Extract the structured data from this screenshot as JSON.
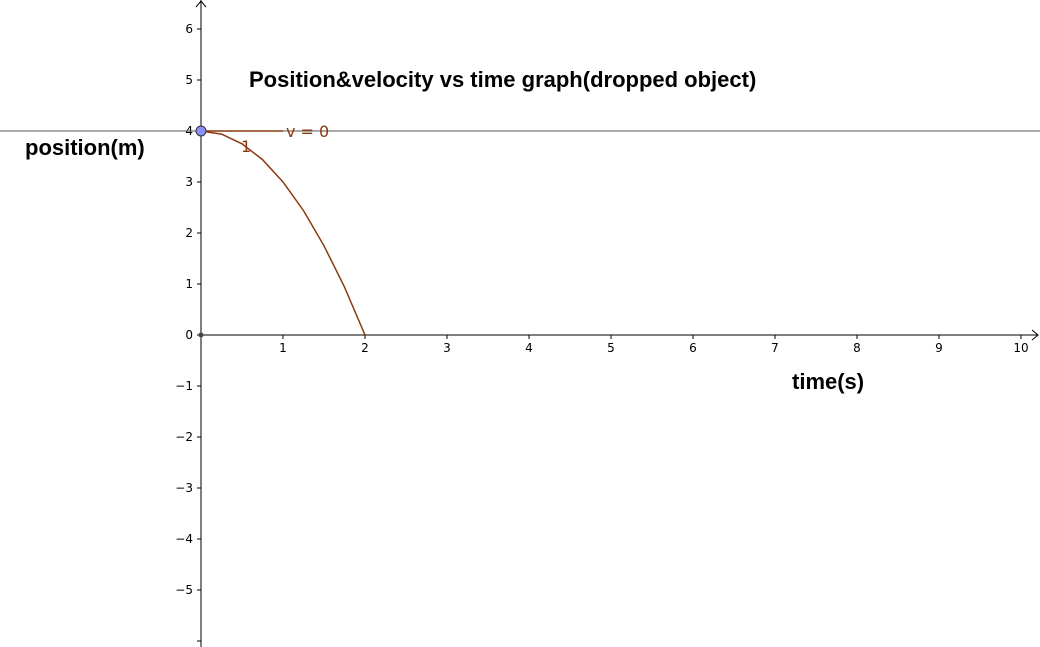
{
  "chart_data": {
    "type": "line",
    "title": "Position&velocity vs time graph(dropped object)",
    "xlabel": "time(s)",
    "ylabel": "position(m)",
    "xlim": [
      0,
      10
    ],
    "ylim": [
      -6,
      6
    ],
    "x_ticks": [
      "1",
      "2",
      "3",
      "4",
      "5",
      "6",
      "7",
      "8",
      "9",
      "10"
    ],
    "y_ticks": [
      "6",
      "5",
      "4",
      "3",
      "2",
      "1",
      "0",
      "−1",
      "−2",
      "−3",
      "−4",
      "−5"
    ],
    "grid": false,
    "curve": {
      "x": [
        0,
        0.25,
        0.5,
        0.75,
        1,
        1.25,
        1.5,
        1.75,
        2
      ],
      "y": [
        4,
        3.94,
        3.75,
        3.44,
        3,
        2.44,
        1.75,
        0.94,
        0
      ]
    },
    "horizontal_line_y": 4,
    "tangent_segment": {
      "x": [
        0,
        1
      ],
      "y": [
        4,
        4
      ]
    },
    "point": {
      "x": 0,
      "y": 4
    },
    "annotations": {
      "velocity": "v = 0",
      "slope": "1"
    },
    "colors": {
      "curve": "#8b3a0f",
      "point": "#8f8fff",
      "axis": "#000000",
      "horizontal_line": "#555555"
    }
  }
}
